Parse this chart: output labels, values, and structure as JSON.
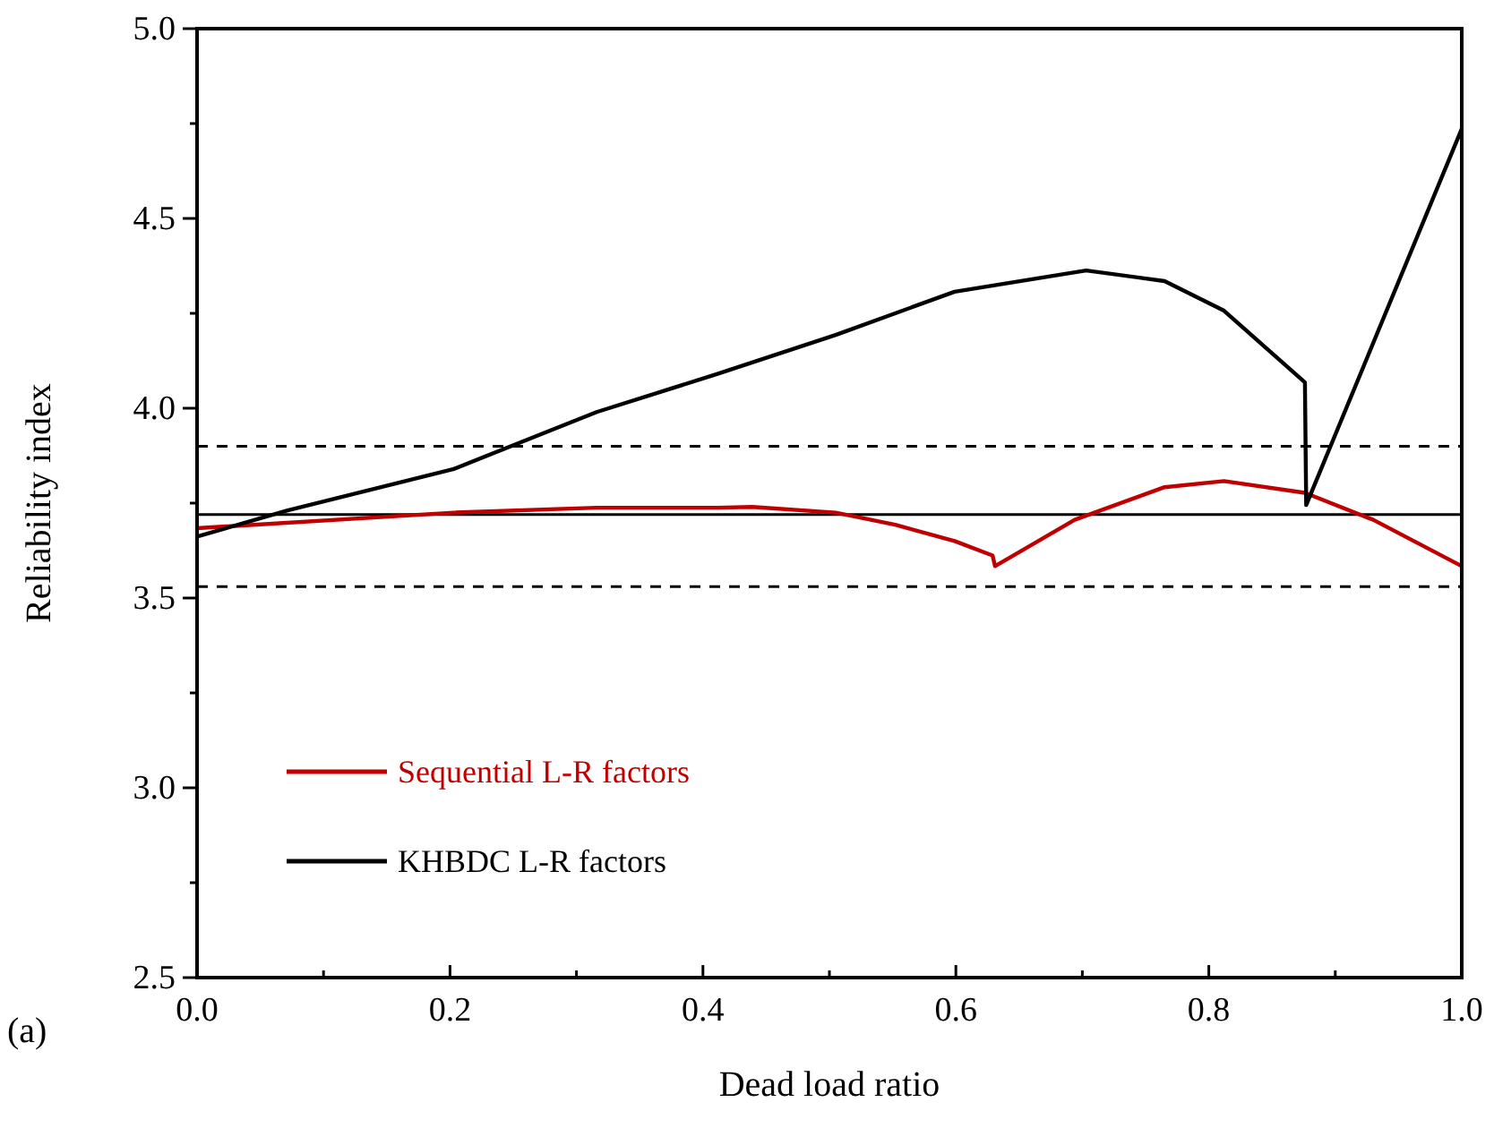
{
  "chart_data": {
    "type": "line",
    "xlabel": "Dead load ratio",
    "ylabel": "Reliability index",
    "annotations": [
      "(a)"
    ],
    "xlim": [
      0,
      1
    ],
    "ylim": [
      2.5,
      5
    ],
    "xticks": [
      {
        "value": 0.1,
        "label": null
      },
      {
        "value": 0.2,
        "label": "0.2"
      },
      {
        "value": 0.3,
        "label": null
      },
      {
        "value": 0.4,
        "label": "0.4"
      },
      {
        "value": 0.5,
        "label": null
      },
      {
        "value": 0.6,
        "label": "0.6"
      },
      {
        "value": 0.7,
        "label": null
      },
      {
        "value": 0.8,
        "label": "0.8"
      },
      {
        "value": 0.9,
        "label": null
      },
      {
        "value": 1,
        "label": "1.0"
      },
      {
        "value": 0,
        "label": "0.0"
      }
    ],
    "yticks": [
      {
        "value": 2.5,
        "label": "2.5"
      },
      {
        "value": 2.75,
        "label": null
      },
      {
        "value": 3,
        "label": "3.0"
      },
      {
        "value": 3.25,
        "label": null
      },
      {
        "value": 3.5,
        "label": "3.5"
      },
      {
        "value": 3.75,
        "label": null
      },
      {
        "value": 4,
        "label": "4.0"
      },
      {
        "value": 4.25,
        "label": null
      },
      {
        "value": 4.5,
        "label": "4.5"
      },
      {
        "value": 4.75,
        "label": null
      },
      {
        "value": 5,
        "label": "5.0"
      }
    ],
    "grid": false,
    "legend": "bottom left",
    "marker": "none",
    "line_style": "solid",
    "ref_lines": [
      {
        "axis": "y",
        "value": 3.72,
        "line_style": "solid",
        "color": "#000000"
      },
      {
        "axis": "y",
        "value": 3.9,
        "line_style": "dashed",
        "color": "#000000"
      },
      {
        "axis": "y",
        "value": 3.53,
        "line_style": "dashed",
        "color": "#000000"
      }
    ],
    "series": [
      {
        "name": "Sequential L-R factors",
        "color": "#c00000",
        "x": [
          0,
          0.203,
          0.316,
          0.411,
          0.439,
          0.505,
          0.552,
          0.599,
          0.629,
          0.631,
          0.694,
          0.765,
          0.812,
          0.876,
          0.93,
          1
        ],
        "values": [
          3.684,
          3.725,
          3.738,
          3.738,
          3.74,
          3.725,
          3.693,
          3.65,
          3.612,
          3.584,
          3.706,
          3.792,
          3.808,
          3.777,
          3.706,
          3.584
        ]
      },
      {
        "name": "KHBDC L-R factors",
        "color": "#000000",
        "x": [
          0,
          0.071,
          0.203,
          0.316,
          0.411,
          0.505,
          0.599,
          0.703,
          0.765,
          0.812,
          0.876,
          0.877,
          1
        ],
        "values": [
          3.662,
          3.73,
          3.84,
          3.99,
          4.09,
          4.193,
          4.307,
          4.363,
          4.335,
          4.257,
          4.068,
          3.745,
          4.736
        ]
      }
    ]
  }
}
